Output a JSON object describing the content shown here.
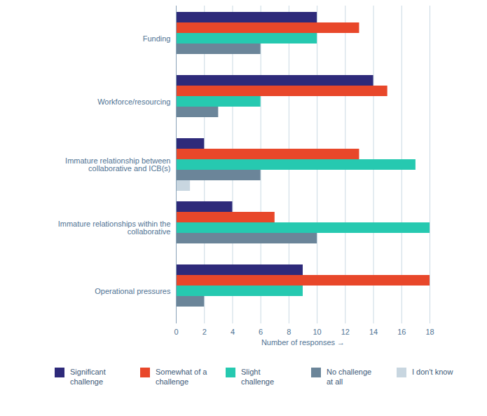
{
  "chart_data": {
    "type": "bar",
    "orientation": "horizontal",
    "x_label": "Number of responses",
    "xlim": [
      0,
      18
    ],
    "xticks": [
      0,
      2,
      4,
      6,
      8,
      10,
      12,
      14,
      16,
      18
    ],
    "grid": true,
    "legend": "bottom",
    "categories": [
      "Funding",
      "Workforce/resourcing",
      "Immature relationship between collaborative and ICB(s)",
      "Immature relationships within the collaborative",
      "Operational pressures"
    ],
    "series": [
      {
        "name": "Significant challenge",
        "color": "#2e2a7a",
        "values": [
          10,
          14,
          2,
          4,
          9
        ]
      },
      {
        "name": "Somewhat of a challenge",
        "color": "#e8472a",
        "values": [
          13,
          15,
          13,
          7,
          18
        ]
      },
      {
        "name": "Slight challenge",
        "color": "#26c9b0",
        "values": [
          10,
          6,
          17,
          18,
          9
        ]
      },
      {
        "name": "No challenge at all",
        "color": "#6b8599",
        "values": [
          6,
          3,
          6,
          10,
          2
        ]
      },
      {
        "name": "I don't know",
        "color": "#c8d6e0",
        "values": [
          0,
          0,
          1,
          0,
          0
        ]
      }
    ]
  }
}
